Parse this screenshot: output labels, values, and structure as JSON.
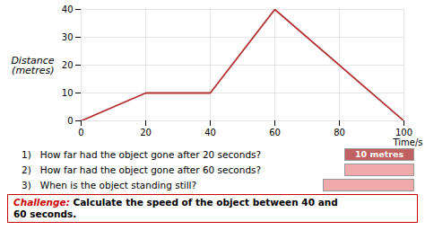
{
  "chart_data": {
    "type": "line",
    "x_label": "Time/s",
    "y_label": "Distance\n(metres)",
    "x": [
      0,
      20,
      40,
      60,
      100
    ],
    "values": [
      0,
      10,
      10,
      40,
      0
    ],
    "color": "#b03030",
    "xlim": [
      0,
      100
    ],
    "ylim": [
      0,
      40
    ],
    "xticks": [
      0,
      20,
      40,
      60,
      80,
      100
    ],
    "yticks": [
      0,
      10,
      20,
      30,
      40
    ],
    "grid": true,
    "annotations": [
      "1)   How far had the object gone after 20 seconds?",
      "2)   How far had the object gone after 60 seconds?",
      "3)   When is the object standing still?",
      "10 metres",
      "Challenge:",
      "Calculate the speed of the object between 40 and\n60 seconds."
    ]
  }
}
